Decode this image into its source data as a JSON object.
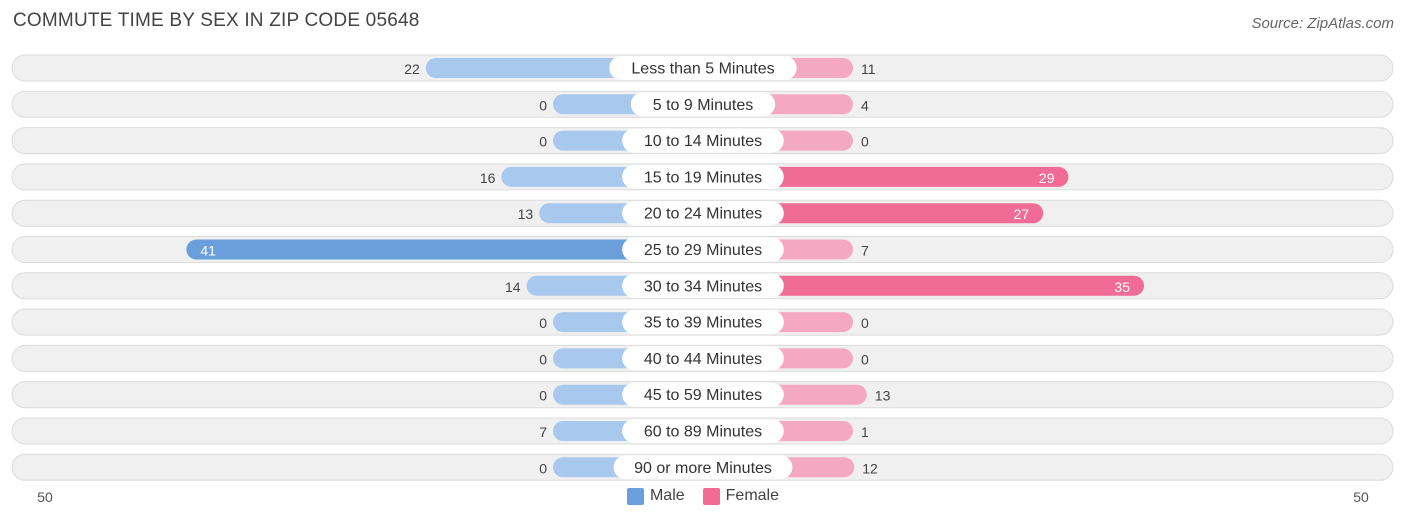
{
  "header": {
    "title": "COMMUTE TIME BY SEX IN ZIP CODE 05648",
    "source": "Source: ZipAtlas.com"
  },
  "colors": {
    "male": "#6a9fdc",
    "male_light": "#a9c8ee",
    "female": "#f06b96",
    "female_light": "#f5a8c1",
    "row_bg": "#f0f0f0",
    "row_border": "#dcdcdc"
  },
  "legend": {
    "male_label": "Male",
    "female_label": "Female"
  },
  "axis": {
    "left_label": "50",
    "right_label": "50"
  },
  "chart_data": {
    "type": "bar",
    "orientation": "horizontal-diverging",
    "title": "COMMUTE TIME BY SEX IN ZIP CODE 05648",
    "categories": [
      "Less than 5 Minutes",
      "5 to 9 Minutes",
      "10 to 14 Minutes",
      "15 to 19 Minutes",
      "20 to 24 Minutes",
      "25 to 29 Minutes",
      "30 to 34 Minutes",
      "35 to 39 Minutes",
      "40 to 44 Minutes",
      "45 to 59 Minutes",
      "60 to 89 Minutes",
      "90 or more Minutes"
    ],
    "series": [
      {
        "name": "Male",
        "values": [
          22,
          0,
          0,
          16,
          13,
          41,
          14,
          0,
          0,
          0,
          7,
          0
        ]
      },
      {
        "name": "Female",
        "values": [
          11,
          4,
          0,
          29,
          27,
          7,
          35,
          0,
          0,
          13,
          1,
          12
        ]
      }
    ],
    "xlim": [
      -50,
      50
    ],
    "grid": false,
    "legend_position": "bottom-center"
  }
}
